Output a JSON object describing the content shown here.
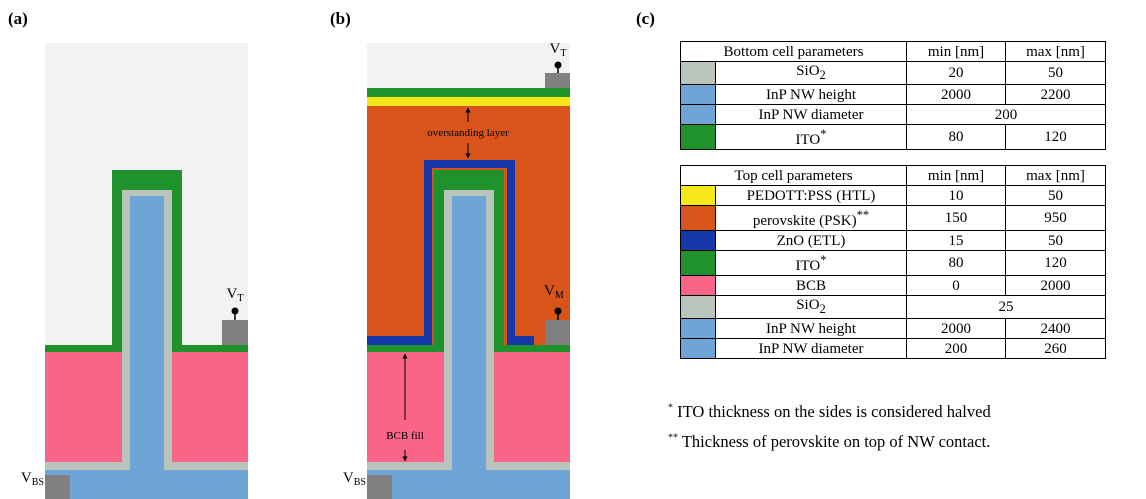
{
  "panels": {
    "a": {
      "label": "(a)",
      "v_t": {
        "main": "V",
        "sub": "T"
      },
      "v_bs": {
        "main": "V",
        "sub": "BS"
      }
    },
    "b": {
      "label": "(b)",
      "v_t": {
        "main": "V",
        "sub": "T"
      },
      "v_m": {
        "main": "V",
        "sub": "M"
      },
      "v_bs": {
        "main": "V",
        "sub": "BS"
      },
      "overstanding": "overstanding layer",
      "bcb_fill": "BCB fill"
    },
    "c": {
      "label": "(c)"
    }
  },
  "tables": [
    {
      "header": [
        "Bottom cell parameters",
        "min [nm]",
        "max [nm]"
      ],
      "rows": [
        {
          "color": "#b9c4bd",
          "name": "SiO",
          "sub": "2",
          "min": 20,
          "max": 50
        },
        {
          "color": "#6fa5d6",
          "name": "InP NW height",
          "min": 2000,
          "max": 2200
        },
        {
          "color": "#6fa5d6",
          "name": "InP NW diameter",
          "value": 200
        },
        {
          "color": "#1f922b",
          "name": "ITO",
          "sup": "*",
          "min": 80,
          "max": 120
        }
      ]
    },
    {
      "header": [
        "Top cell parameters",
        "min [nm]",
        "max [nm]"
      ],
      "rows": [
        {
          "color": "#f7e81a",
          "name": "PEDOTT:PSS (HTL)",
          "min": 10,
          "max": 50
        },
        {
          "color": "#d9541a",
          "name": "perovskite (PSK)",
          "sup": "**",
          "min": 150,
          "max": 950
        },
        {
          "color": "#1736a8",
          "name": "ZnO (ETL)",
          "min": 15,
          "max": 50
        },
        {
          "color": "#1f922b",
          "name": "ITO",
          "sup": "*",
          "min": 80,
          "max": 120
        },
        {
          "color": "#fa6487",
          "name": "BCB",
          "min": 0,
          "max": 2000
        },
        {
          "color": "#b9c4bd",
          "name": "SiO",
          "sub": "2",
          "value": 25
        },
        {
          "color": "#6fa5d6",
          "name": "InP NW height",
          "min": 2000,
          "max": 2400
        },
        {
          "color": "#6fa5d6",
          "name": "InP NW diameter",
          "min": 200,
          "max": 260
        }
      ]
    }
  ],
  "footnotes": [
    {
      "mark": "*",
      "text": "ITO thickness on the sides is considered halved"
    },
    {
      "mark": "**",
      "text": "Thickness of perovskite on top of NW contact."
    }
  ]
}
